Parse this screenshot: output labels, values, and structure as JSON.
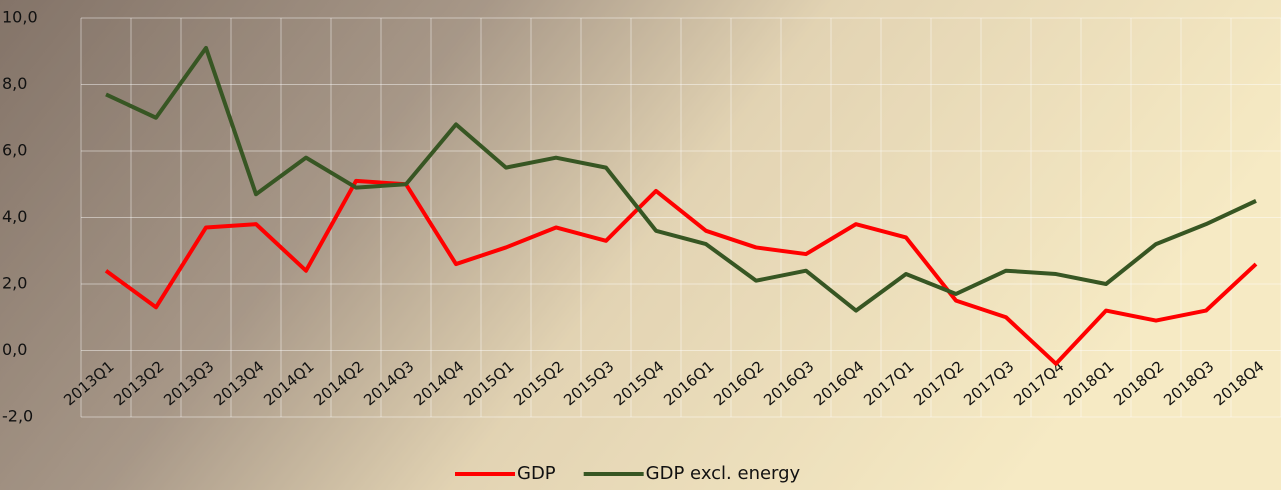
{
  "chart_data": {
    "type": "line",
    "categories": [
      "2013Q1",
      "2013Q2",
      "2013Q3",
      "2013Q4",
      "2014Q1",
      "2014Q2",
      "2014Q3",
      "2014Q4",
      "2015Q1",
      "2015Q2",
      "2015Q3",
      "2015Q4",
      "2016Q1",
      "2016Q2",
      "2016Q3",
      "2016Q4",
      "2017Q1",
      "2017Q2",
      "2017Q3",
      "2017Q4",
      "2018Q1",
      "2018Q2",
      "2018Q3",
      "2018Q4"
    ],
    "series": [
      {
        "name": "GDP",
        "color": "#ff0000",
        "values": [
          2.4,
          1.3,
          3.7,
          3.8,
          2.4,
          5.1,
          5.0,
          2.6,
          3.1,
          3.7,
          3.3,
          4.8,
          3.6,
          3.1,
          2.9,
          3.8,
          3.4,
          1.5,
          1.0,
          -0.4,
          1.2,
          0.9,
          1.2,
          2.6
        ]
      },
      {
        "name": "GDP excl. energy",
        "color": "#375623",
        "values": [
          7.7,
          7.0,
          9.1,
          4.7,
          5.8,
          4.9,
          5.0,
          6.8,
          5.5,
          5.8,
          5.5,
          3.6,
          3.2,
          2.1,
          2.4,
          1.2,
          2.3,
          1.7,
          2.4,
          2.3,
          2.0,
          3.2,
          3.8,
          4.5
        ]
      }
    ],
    "ylim": [
      -2,
      10
    ],
    "yticks": [
      {
        "value": -2,
        "label": "-2,0"
      },
      {
        "value": 0,
        "label": "0,0"
      },
      {
        "value": 2,
        "label": "2,0"
      },
      {
        "value": 4,
        "label": "4,0"
      },
      {
        "value": 6,
        "label": "6,0"
      },
      {
        "value": 8,
        "label": "8,0"
      },
      {
        "value": 10,
        "label": "10,0"
      }
    ],
    "grid": true,
    "legend": "bottom"
  }
}
